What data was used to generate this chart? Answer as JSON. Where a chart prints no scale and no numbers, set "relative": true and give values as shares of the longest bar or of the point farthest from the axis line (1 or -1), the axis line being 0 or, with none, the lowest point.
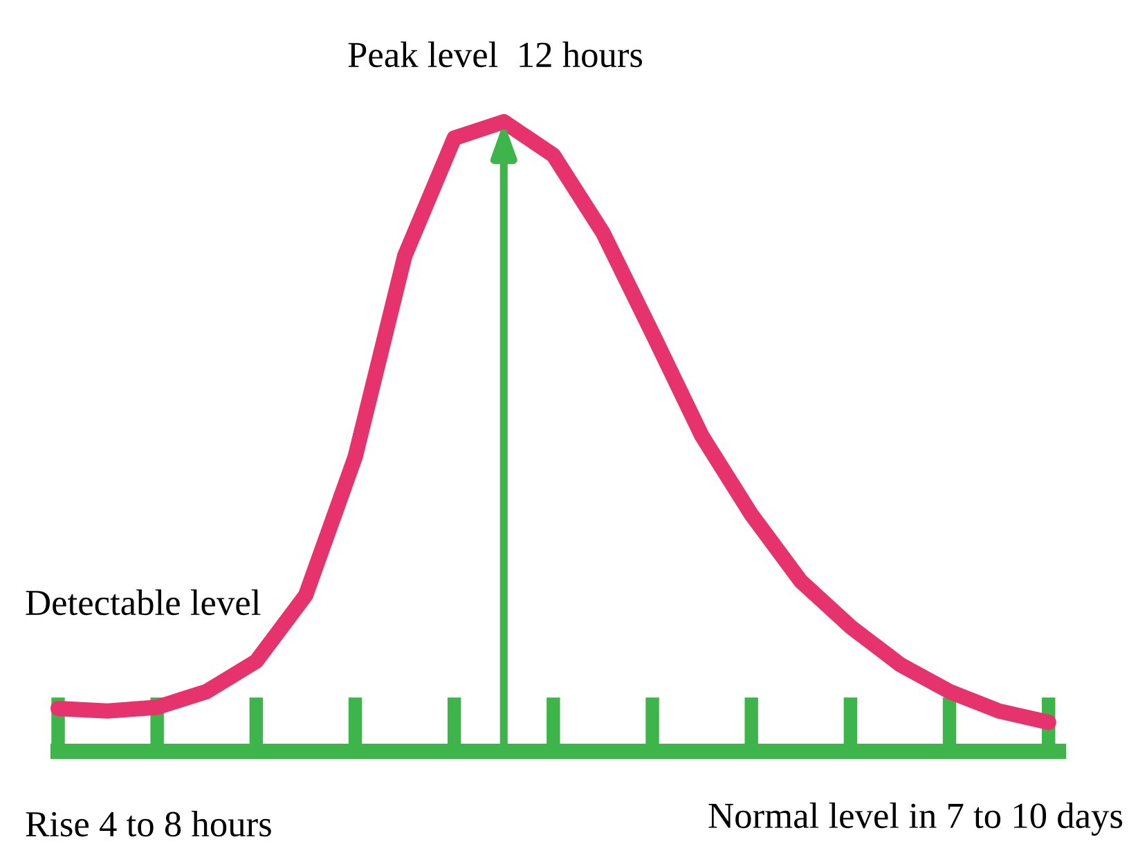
{
  "chart_data": {
    "type": "line",
    "relative": true,
    "categories": [
      null,
      null,
      null,
      null,
      null,
      null,
      null,
      null,
      null,
      null,
      null,
      null,
      null,
      null,
      null,
      null,
      null,
      null,
      null,
      null,
      null
    ],
    "series": [
      {
        "color": "#e6336e",
        "values": [
          0.068,
          0.064,
          0.07,
          0.095,
          0.143,
          0.248,
          0.468,
          0.787,
          0.974,
          1,
          0.947,
          0.824,
          0.664,
          0.501,
          0.376,
          0.27,
          0.198,
          0.138,
          0.095,
          0.064,
          0.046
        ]
      }
    ],
    "line_style": "solid",
    "annotations": [
      "Peak level  12 hours",
      "Detectable level",
      "Rise 4 to 8 hours",
      "Normal level in 7 to 10 days"
    ]
  }
}
